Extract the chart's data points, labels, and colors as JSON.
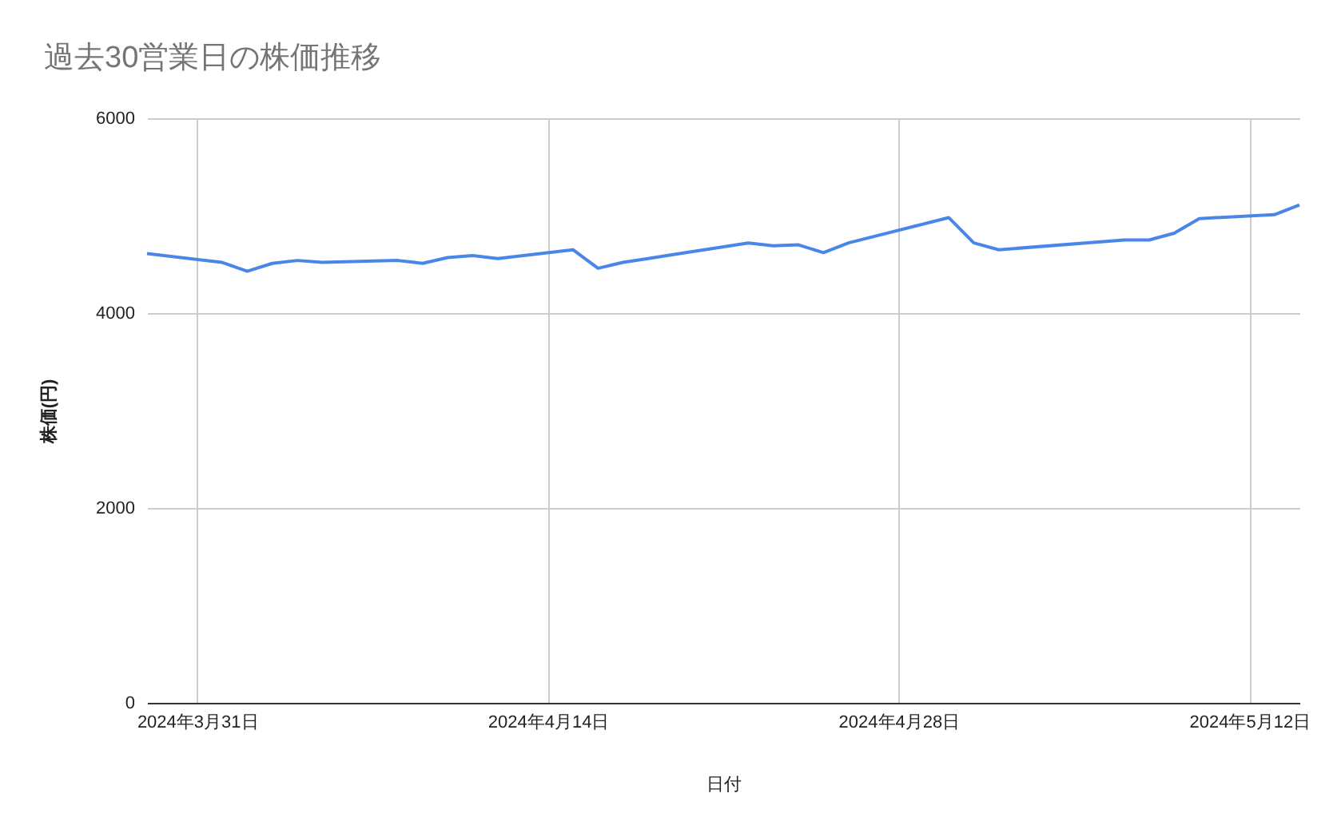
{
  "chart_data": {
    "type": "line",
    "title": "過去30営業日の株価推移",
    "xlabel": "日付",
    "ylabel": "株価(円)",
    "x": [
      "2024-03-29",
      "2024-04-01",
      "2024-04-02",
      "2024-04-03",
      "2024-04-04",
      "2024-04-05",
      "2024-04-08",
      "2024-04-09",
      "2024-04-10",
      "2024-04-11",
      "2024-04-12",
      "2024-04-15",
      "2024-04-16",
      "2024-04-17",
      "2024-04-18",
      "2024-04-19",
      "2024-04-22",
      "2024-04-23",
      "2024-04-24",
      "2024-04-25",
      "2024-04-26",
      "2024-04-30",
      "2024-05-01",
      "2024-05-02",
      "2024-05-07",
      "2024-05-08",
      "2024-05-09",
      "2024-05-10",
      "2024-05-13",
      "2024-05-14"
    ],
    "series": [
      {
        "color": "#4a86e8",
        "values": [
          4610,
          4520,
          4430,
          4510,
          4540,
          4520,
          4540,
          4510,
          4570,
          4590,
          4560,
          4650,
          4460,
          4520,
          4560,
          4600,
          4720,
          4690,
          4700,
          4620,
          4720,
          4980,
          4720,
          4650,
          4750,
          4750,
          4820,
          4970,
          5010,
          5110
        ]
      }
    ],
    "xlim": [
      "2024-03-29",
      "2024-05-14"
    ],
    "xticks": [
      {
        "value": "2024-03-31",
        "label": "2024年3月31日"
      },
      {
        "value": "2024-04-14",
        "label": "2024年4月14日"
      },
      {
        "value": "2024-04-28",
        "label": "2024年4月28日"
      },
      {
        "value": "2024-05-12",
        "label": "2024年5月12日"
      }
    ],
    "ylim": [
      0,
      6000
    ],
    "yticks": [
      0,
      2000,
      4000,
      6000
    ],
    "grid": true,
    "legend": false,
    "marker": "none",
    "line_style": "solid"
  }
}
